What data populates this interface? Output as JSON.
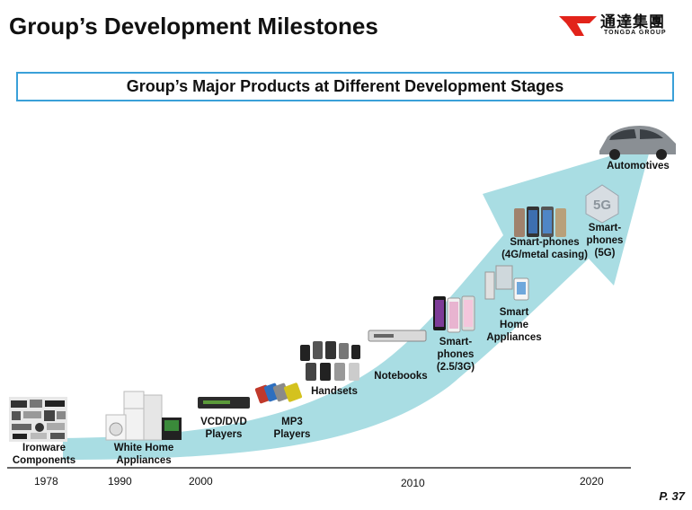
{
  "header": {
    "title": "Group’s Development Milestones",
    "logo_cn": "通達集團",
    "logo_en": "TONGDA GROUP",
    "brand_color": "#e2231a"
  },
  "subtitle": "Group’s Major Products at Different Development Stages",
  "timeline": {
    "years": [
      "1978",
      "1990",
      "2000",
      "2010",
      "2020"
    ]
  },
  "products": {
    "ironware": "Ironware\nComponents",
    "white_home": "White Home\nAppliances",
    "vcd_dvd": "VCD/DVD\nPlayers",
    "mp3": "MP3\nPlayers",
    "handsets": "Handsets",
    "notebooks": "Notebooks",
    "smartphones_25_3g": "Smart-\nphones\n(2.5/3G)",
    "smart_home": "Smart\nHome\nAppliances",
    "smartphones_4g": "Smart-phones\n(4G/metal casing)",
    "smartphones_5g": "Smart-\nphones\n(5G)",
    "automotives": "Automotives",
    "badge_5g": "5G"
  },
  "footer": {
    "page": "P. 37"
  },
  "colors": {
    "arrow": "#a9dde3",
    "box_border": "#3aa0d8"
  }
}
